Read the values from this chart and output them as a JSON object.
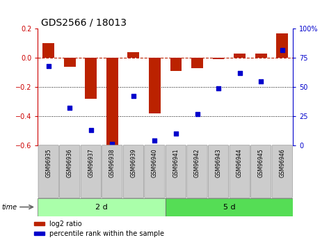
{
  "title": "GDS2566 / 18013",
  "samples": [
    "GSM96935",
    "GSM96936",
    "GSM96937",
    "GSM96938",
    "GSM96939",
    "GSM96940",
    "GSM96941",
    "GSM96942",
    "GSM96943",
    "GSM96944",
    "GSM96945",
    "GSM96946"
  ],
  "log2_ratio": [
    0.1,
    -0.06,
    -0.28,
    -0.61,
    0.04,
    -0.38,
    -0.09,
    -0.07,
    -0.01,
    0.03,
    0.03,
    0.17
  ],
  "percentile_rank": [
    68,
    32,
    13,
    1,
    42,
    4,
    10,
    27,
    49,
    62,
    55,
    82
  ],
  "groups": [
    {
      "label": "2 d",
      "start": 0,
      "end": 6,
      "color": "#aaffaa"
    },
    {
      "label": "5 d",
      "start": 6,
      "end": 12,
      "color": "#55dd55"
    }
  ],
  "bar_color": "#BB2200",
  "point_color": "#0000CC",
  "ylim_left": [
    -0.6,
    0.2
  ],
  "ylim_right": [
    0,
    100
  ],
  "yticks_left": [
    -0.6,
    -0.4,
    -0.2,
    0.0,
    0.2
  ],
  "yticks_right": [
    0,
    25,
    50,
    75,
    100
  ],
  "hline_y": 0.0,
  "dotted_lines": [
    -0.2,
    -0.4
  ],
  "background_color": "#ffffff",
  "left_tick_color": "#CC0000",
  "right_tick_color": "#0000CC",
  "legend_color_bar": "#BB2200",
  "legend_color_point": "#0000CC",
  "title_fontsize": 10,
  "tick_fontsize": 7,
  "sample_fontsize": 5.5,
  "group_fontsize": 8,
  "legend_fontsize": 7
}
